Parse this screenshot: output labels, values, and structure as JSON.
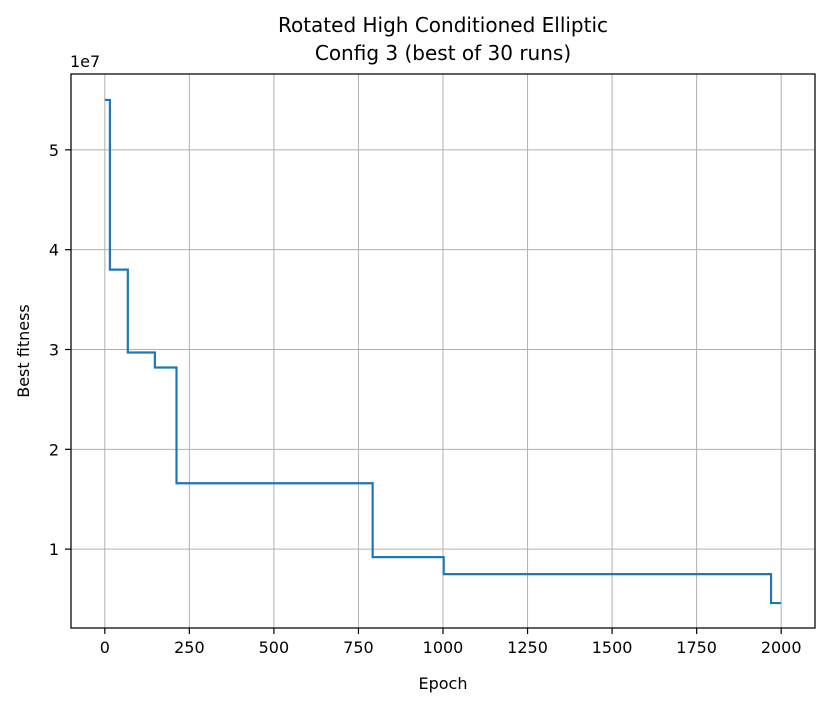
{
  "chart_data": {
    "type": "line",
    "title_line1": "Rotated High Conditioned Elliptic",
    "title_line2": "Config 3  (best of 30 runs)",
    "xlabel": "Epoch",
    "ylabel": "Best fitness",
    "y_offset_text": "1e7",
    "xlim": [
      -100,
      2100
    ],
    "ylim": [
      2.1,
      57.6
    ],
    "y_scale_note": "values in units of 1e6",
    "x_ticks": [
      0,
      250,
      500,
      750,
      1000,
      1250,
      1500,
      1750,
      2000
    ],
    "x_tick_labels": [
      "0",
      "250",
      "500",
      "750",
      "1000",
      "1250",
      "1500",
      "1750",
      "2000"
    ],
    "y_ticks": [
      10,
      20,
      30,
      40,
      50
    ],
    "y_tick_labels": [
      "1",
      "2",
      "3",
      "4",
      "5"
    ],
    "grid": true,
    "line_color": "#1f77b4",
    "series": [
      {
        "name": "best fitness",
        "step": "post",
        "x": [
          0,
          15,
          68,
          148,
          212,
          792,
          1002,
          1970,
          1999
        ],
        "y": [
          55.0,
          38.0,
          29.7,
          28.2,
          16.6,
          9.2,
          7.5,
          4.6,
          4.6
        ]
      }
    ]
  }
}
